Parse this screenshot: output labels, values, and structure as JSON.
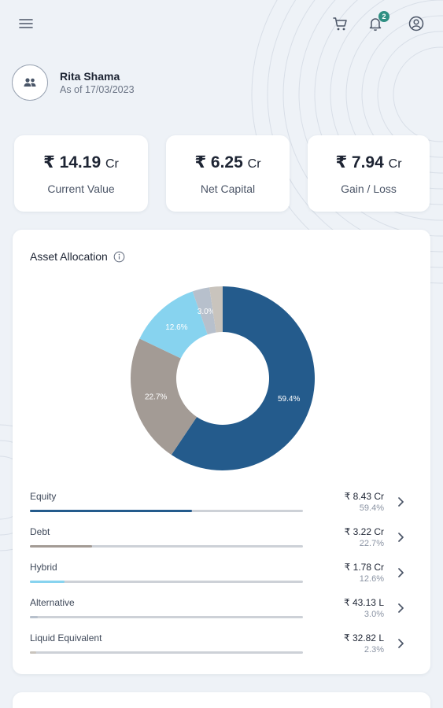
{
  "topbar": {
    "menu_icon": "hamburger-menu-icon",
    "cart_icon": "cart-icon",
    "bell_icon": "bell-icon",
    "notification_count": "2",
    "profile_icon": "user-circle-icon"
  },
  "client": {
    "name": "Rita Shama",
    "as_of": "As of 17/03/2023",
    "avatar_icon": "people-icon"
  },
  "stats": [
    {
      "currency": "₹",
      "amount": "14.19",
      "unit": "Cr",
      "label": "Current Value"
    },
    {
      "currency": "₹",
      "amount": "6.25",
      "unit": "Cr",
      "label": "Net Capital"
    },
    {
      "currency": "₹",
      "amount": "7.94",
      "unit": "Cr",
      "label": "Gain / Loss"
    }
  ],
  "allocation": {
    "title": "Asset Allocation",
    "info_icon": "info-icon",
    "assets": [
      {
        "name": "Equity",
        "amount": "₹ 8.43 Cr",
        "pct": "59.4%",
        "share": 59.4,
        "color": "#245b8c"
      },
      {
        "name": "Debt",
        "amount": "₹ 3.22 Cr",
        "pct": "22.7%",
        "share": 22.7,
        "color": "#a39b95"
      },
      {
        "name": "Hybrid",
        "amount": "₹ 1.78 Cr",
        "pct": "12.6%",
        "share": 12.6,
        "color": "#87d3ef"
      },
      {
        "name": "Alternative",
        "amount": "₹ 43.13 L",
        "pct": "3.0%",
        "share": 3.0,
        "color": "#b7c0cc"
      },
      {
        "name": "Liquid Equivalent",
        "amount": "₹ 32.82 L",
        "pct": "2.3%",
        "share": 2.3,
        "color": "#c9c4bd"
      }
    ]
  },
  "chart_data": {
    "type": "pie",
    "categories": [
      "Equity",
      "Debt",
      "Hybrid",
      "Alternative",
      "Liquid Equivalent"
    ],
    "values": [
      59.4,
      22.7,
      12.6,
      3.0,
      2.3
    ],
    "data_labels": [
      "59.4%",
      "22.7%",
      "12.6%",
      "3.0%",
      ""
    ],
    "colors": [
      "#245b8c",
      "#a39b95",
      "#87d3ef",
      "#b7c0cc",
      "#c9c4bd"
    ],
    "title": "Asset Allocation"
  }
}
